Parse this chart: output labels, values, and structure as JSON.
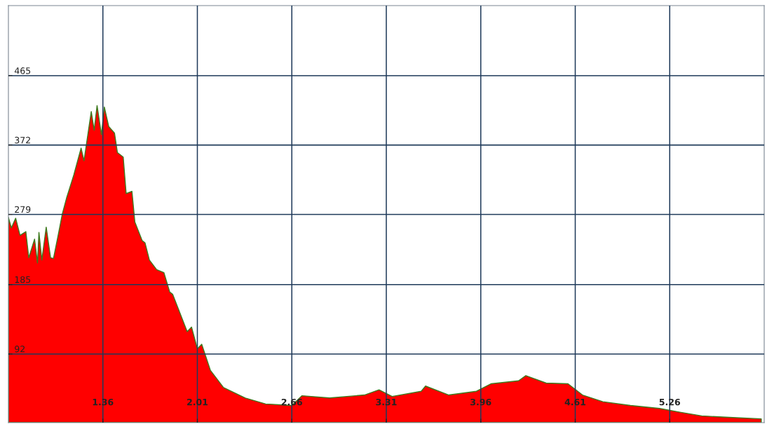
{
  "chart_data": {
    "type": "area",
    "x": [
      0.71,
      0.73,
      0.76,
      0.79,
      0.83,
      0.85,
      0.89,
      0.91,
      0.92,
      0.94,
      0.97,
      1.0,
      1.02,
      1.05,
      1.08,
      1.11,
      1.16,
      1.21,
      1.23,
      1.28,
      1.3,
      1.32,
      1.35,
      1.37,
      1.4,
      1.44,
      1.46,
      1.5,
      1.52,
      1.56,
      1.58,
      1.63,
      1.65,
      1.68,
      1.73,
      1.78,
      1.82,
      1.84,
      1.89,
      1.94,
      1.97,
      2.01,
      2.04,
      2.1,
      2.19,
      2.34,
      2.48,
      2.66,
      2.73,
      2.92,
      3.16,
      3.26,
      3.35,
      3.55,
      3.58,
      3.74,
      3.93,
      4.03,
      4.22,
      4.27,
      4.41,
      4.56,
      4.66,
      4.8,
      4.99,
      5.19,
      5.33,
      5.48,
      5.67,
      5.89
    ],
    "series": [
      {
        "color": "#ff0000",
        "values": [
          275,
          261,
          274,
          251,
          256,
          221,
          246,
          214,
          255,
          218,
          262,
          221,
          220,
          249,
          279,
          301,
          332,
          368,
          351,
          417,
          392,
          425,
          386,
          423,
          397,
          388,
          362,
          356,
          307,
          310,
          269,
          244,
          241,
          218,
          205,
          201,
          175,
          172,
          147,
          122,
          128,
          99,
          105,
          70,
          47,
          33,
          25,
          23,
          36,
          33,
          37,
          44,
          35,
          42,
          49,
          37,
          42,
          52,
          56,
          63,
          53,
          52,
          37,
          28,
          23,
          19,
          14,
          9,
          7,
          5
        ]
      }
    ],
    "xlim": [
      0.71,
      5.91
    ],
    "xticks": [
      1.36,
      2.01,
      2.66,
      3.31,
      3.96,
      4.61,
      5.26
    ],
    "ylim": [
      0,
      559
    ],
    "yticks": [
      92,
      185,
      279,
      372,
      465
    ],
    "grid": true
  }
}
